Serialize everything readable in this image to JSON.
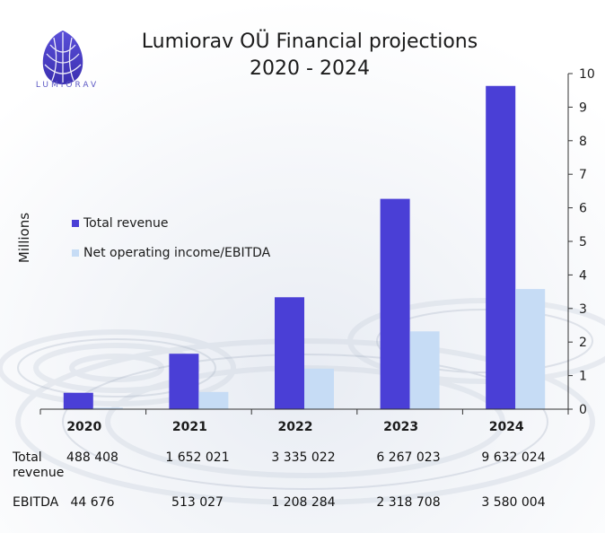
{
  "logo": {
    "text": "LUMIORAV"
  },
  "chart_data": {
    "type": "bar",
    "title": "Lumiorav OÜ Financial projections",
    "subtitle": "2020 - 2024",
    "ylabel": "Millions",
    "xlabel": "",
    "categories": [
      "2020",
      "2021",
      "2022",
      "2023",
      "2024"
    ],
    "ylim": [
      0,
      10
    ],
    "yticks": [
      "0",
      "1",
      "2",
      "3",
      "4",
      "5",
      "6",
      "7",
      "8",
      "9",
      "10"
    ],
    "y_axis_side": "right",
    "legend_position": "left-middle",
    "series": [
      {
        "name": "Total revenue",
        "color": "#4a3fd6",
        "values": [
          0.488408,
          1.652021,
          3.335022,
          6.267023,
          9.632024
        ]
      },
      {
        "name": "Net operating income/EBITDA",
        "color": "#c6dcf5",
        "values": [
          0.044676,
          0.513027,
          1.208284,
          2.318708,
          3.580004
        ]
      }
    ]
  },
  "table": {
    "rows": [
      {
        "label": "Total revenue",
        "values": [
          "488 408",
          "1 652 021",
          "3 335 022",
          "6 267 023",
          "9 632 024"
        ]
      },
      {
        "label": "EBITDA",
        "values": [
          "44 676",
          "513 027",
          "1 208 284",
          "2 318 708",
          "3 580 004"
        ]
      }
    ]
  }
}
